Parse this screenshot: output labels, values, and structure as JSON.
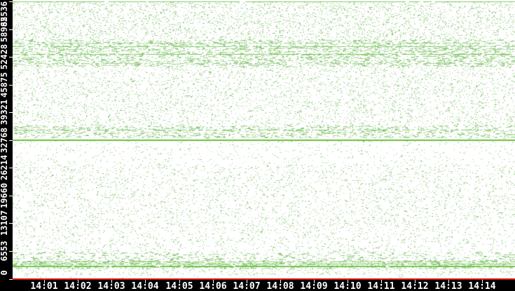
{
  "chart_data": {
    "type": "scatter",
    "title": "",
    "xlabel": "",
    "ylabel": "",
    "legend": null,
    "grid": false,
    "background_color": "#ffffff",
    "axis_band_color": "#000000",
    "axis_text_color": "#ffffff",
    "x_axis": {
      "start_time": "14:00",
      "range_minutes": [
        0,
        14.95
      ],
      "tick_minutes": [
        1,
        2,
        3,
        4,
        5,
        6,
        7,
        8,
        9,
        10,
        11,
        12,
        13,
        14
      ],
      "tick_labels": [
        "14:01",
        "14:02",
        "14:03",
        "14:04",
        "14:05",
        "14:06",
        "14:07",
        "14:08",
        "14:09",
        "14:10",
        "14:11",
        "14:12",
        "14:13",
        "14:14"
      ]
    },
    "y_axis": {
      "range": [
        0,
        65536
      ],
      "tick_values": [
        0,
        6553,
        13107,
        19660,
        26214,
        32768,
        39321,
        45875,
        52428,
        58982,
        65536
      ],
      "tick_labels": [
        "0",
        "6553",
        "13107",
        "19660",
        "26214",
        "32768",
        "39321",
        "45875",
        "52428",
        "58982",
        "65536"
      ]
    },
    "point_colors": [
      "#abd79d",
      "#9bd08a",
      "#85c670"
    ],
    "point_color_weights": [
      0.6,
      0.25,
      0.15
    ],
    "seed": 1337,
    "density_bands": [
      {
        "port_min": 56500,
        "port_max": 65536,
        "density": 0.1,
        "dashy": false
      },
      {
        "port_min": 54500,
        "port_max": 56500,
        "density": 0.13,
        "dashy": true
      },
      {
        "port_min": 50100,
        "port_max": 54500,
        "density": 0.15,
        "dashy": true
      },
      {
        "port_min": 36200,
        "port_max": 50100,
        "density": 0.075,
        "dashy": false
      },
      {
        "port_min": 33200,
        "port_max": 36200,
        "density": 0.12,
        "dashy": true
      },
      {
        "port_min": 27000,
        "port_max": 32700,
        "density": 0.028,
        "dashy": false
      },
      {
        "port_min": 11300,
        "port_max": 27000,
        "density": 0.06,
        "dashy": false
      },
      {
        "port_min": 6300,
        "port_max": 11300,
        "density": 0.05,
        "dashy": false
      },
      {
        "port_min": 4350,
        "port_max": 6300,
        "density": 0.09,
        "dashy": true
      },
      {
        "port_min": 2350,
        "port_max": 4350,
        "density": 0.16,
        "dashy": true
      },
      {
        "port_min": 1000,
        "port_max": 2350,
        "density": 0.07,
        "dashy": false
      },
      {
        "port_min": 200,
        "port_max": 1000,
        "density": 0.02,
        "dashy": false
      }
    ],
    "hlines": [
      {
        "port": 65535,
        "coverage": 0.93,
        "thickness": 1,
        "color": "#84cb6c"
      },
      {
        "port": 55600,
        "coverage": 0.5,
        "thickness": 1,
        "color": "#9ad489"
      },
      {
        "port": 54850,
        "coverage": 0.7,
        "thickness": 1,
        "color": "#8bce74"
      },
      {
        "port": 52950,
        "coverage": 0.88,
        "thickness": 1,
        "color": "#7cc95a"
      },
      {
        "port": 50900,
        "coverage": 0.3,
        "thickness": 1,
        "color": "#9ad489"
      },
      {
        "port": 35200,
        "coverage": 0.55,
        "thickness": 1,
        "color": "#8bce74"
      },
      {
        "port": 32768,
        "coverage": 1.0,
        "thickness": 2,
        "color": "#6abf3e"
      },
      {
        "port": 3900,
        "coverage": 0.75,
        "thickness": 1,
        "color": "#8bce74"
      },
      {
        "port": 3400,
        "coverage": 0.8,
        "thickness": 1,
        "color": "#7cc95a"
      },
      {
        "port": 2850,
        "coverage": 0.95,
        "thickness": 2,
        "color": "#74c54d"
      },
      {
        "port": 0,
        "coverage": 1.0,
        "thickness": 2,
        "color": "#dd1414"
      }
    ]
  }
}
